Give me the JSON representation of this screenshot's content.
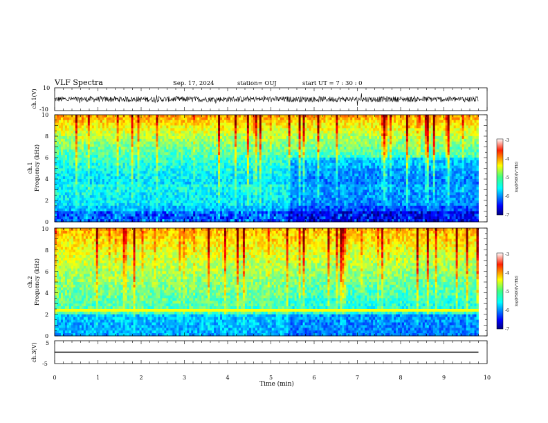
{
  "header": {
    "title": "VLF Spectra",
    "date": "Sep. 17, 2024",
    "station": "station= OUJ",
    "start": "start  UT  =   7 : 30 : 0"
  },
  "chart_data": [
    {
      "type": "line",
      "panel": "ch1-waveform",
      "ylabel": "ch.1(V)",
      "yticks": [
        "10",
        "-10"
      ],
      "ylim": [
        -10,
        10
      ],
      "baseline": 0,
      "noise_amplitude": 2.5
    },
    {
      "type": "heatmap",
      "panel": "ch1-spectrogram",
      "ylabel_line1": "ch.1",
      "ylabel_line2": "Frequency  (kHz)",
      "yticks": [
        "0",
        "2",
        "4",
        "6",
        "8",
        "10"
      ],
      "ylim": [
        0,
        10
      ],
      "colorbar": {
        "label": "log(PSD)(V²/Hz)",
        "ticks": [
          "-3",
          "-4",
          "-5",
          "-6",
          "-7"
        ],
        "range": [
          -7,
          -3
        ]
      }
    },
    {
      "type": "heatmap",
      "panel": "ch2-spectrogram",
      "ylabel_line1": "ch.2",
      "ylabel_line2": "Frequency  (kHz)",
      "yticks": [
        "0",
        "2",
        "4",
        "6",
        "8",
        "10"
      ],
      "ylim": [
        0,
        10
      ],
      "colorbar": {
        "label": "log(PSD)(V²/Hz)",
        "ticks": [
          "-3",
          "-4",
          "-5",
          "-6",
          "-7"
        ],
        "range": [
          -7,
          -3
        ]
      }
    },
    {
      "type": "line",
      "panel": "ch3-waveform",
      "ylabel": "ch.3(V)",
      "yticks": [
        "5",
        "0",
        "-5"
      ],
      "ylim": [
        -5,
        5
      ],
      "baseline": 0
    }
  ],
  "xaxis": {
    "label": "Time  (min)",
    "ticks": [
      "0",
      "1",
      "2",
      "3",
      "4",
      "5",
      "6",
      "7",
      "8",
      "9",
      "10"
    ],
    "xlim": [
      0,
      10
    ],
    "data_end": 9.8
  }
}
